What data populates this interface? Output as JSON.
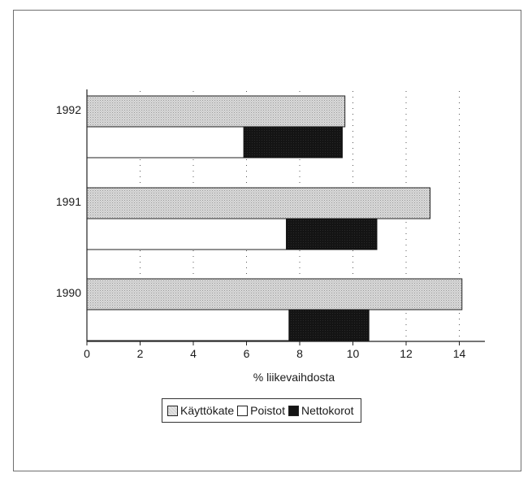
{
  "chart_data": {
    "type": "bar",
    "orientation": "horizontal",
    "categories": [
      "1992",
      "1991",
      "1990"
    ],
    "series": [
      {
        "name": "Käyttökate",
        "kind": "full",
        "values": [
          9.7,
          12.9,
          14.1
        ],
        "color": "#d4d4d4"
      },
      {
        "name": "Poistot",
        "kind": "start",
        "values": [
          5.9,
          7.5,
          7.6
        ],
        "color": "#ffffff"
      },
      {
        "name": "Nettokorot",
        "kind": "segment",
        "start": [
          5.9,
          7.5,
          7.6
        ],
        "values": [
          3.7,
          3.4,
          3.0
        ],
        "color": "#141414"
      }
    ],
    "xlabel": "% liikevaihdosta",
    "xlim": [
      0,
      15
    ],
    "xticks": [
      0,
      2,
      4,
      6,
      8,
      10,
      12,
      14
    ],
    "grid": "vertical-dotted",
    "legend_position": "bottom"
  }
}
